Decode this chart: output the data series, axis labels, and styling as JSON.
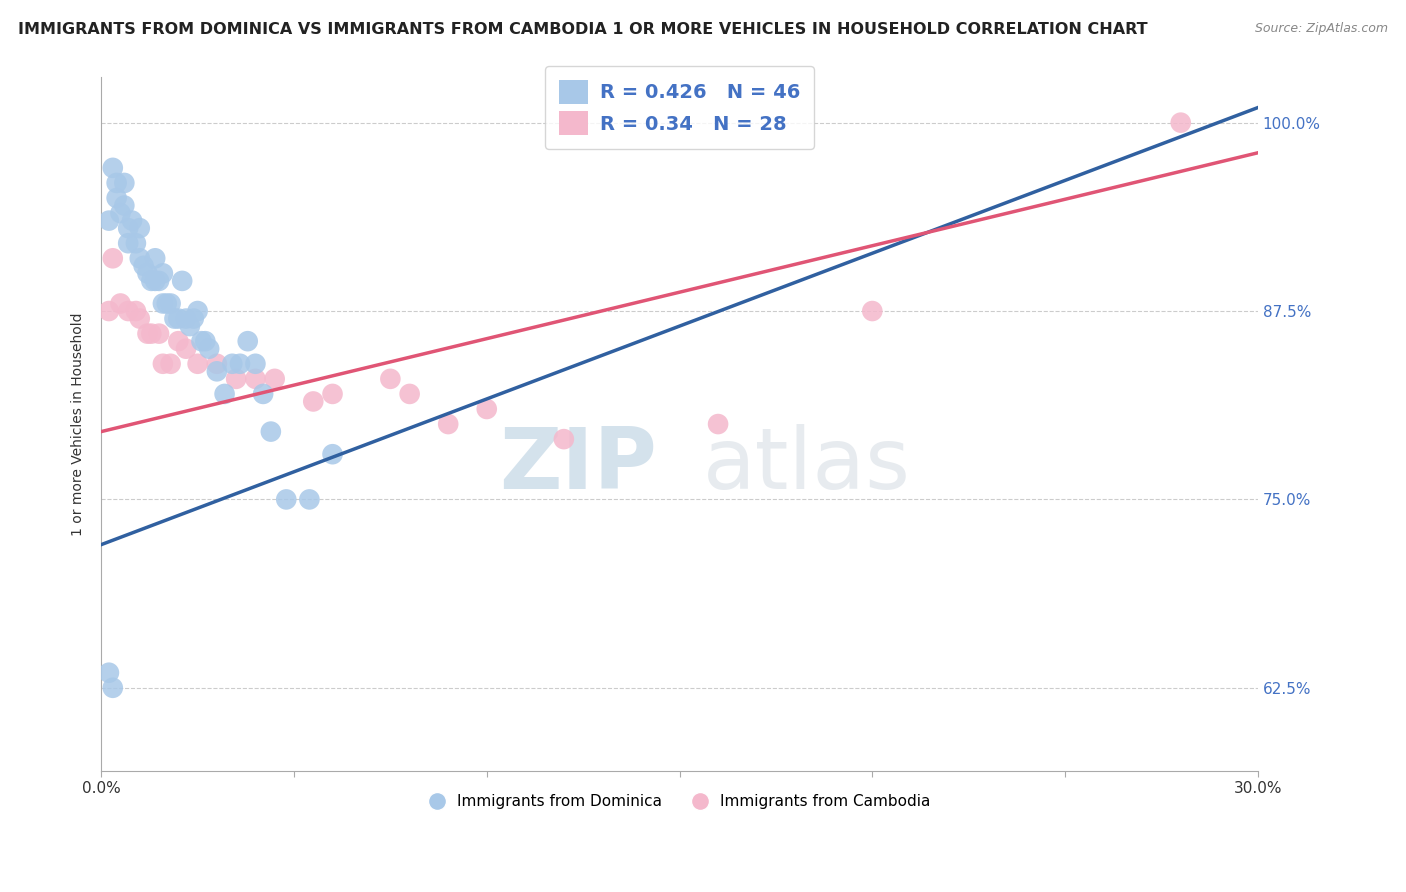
{
  "title": "IMMIGRANTS FROM DOMINICA VS IMMIGRANTS FROM CAMBODIA 1 OR MORE VEHICLES IN HOUSEHOLD CORRELATION CHART",
  "source": "Source: ZipAtlas.com",
  "ylabel": "1 or more Vehicles in Household",
  "xlim": [
    0.0,
    0.3
  ],
  "ylim": [
    0.57,
    1.03
  ],
  "xticks": [
    0.0,
    0.05,
    0.1,
    0.15,
    0.2,
    0.25,
    0.3
  ],
  "xticklabels": [
    "0.0%",
    "",
    "",
    "",
    "",
    "",
    "30.0%"
  ],
  "ytick_positions": [
    0.625,
    0.75,
    0.875,
    1.0
  ],
  "yticklabels": [
    "62.5%",
    "75.0%",
    "87.5%",
    "100.0%"
  ],
  "blue_R": 0.426,
  "blue_N": 46,
  "pink_R": 0.34,
  "pink_N": 28,
  "blue_color": "#a8c8e8",
  "pink_color": "#f4b8cc",
  "blue_line_color": "#3060a0",
  "pink_line_color": "#e05575",
  "legend_color": "#4472c4",
  "blue_x": [
    0.002,
    0.003,
    0.004,
    0.004,
    0.005,
    0.006,
    0.006,
    0.007,
    0.007,
    0.008,
    0.009,
    0.01,
    0.01,
    0.011,
    0.012,
    0.013,
    0.014,
    0.014,
    0.015,
    0.016,
    0.016,
    0.017,
    0.018,
    0.019,
    0.02,
    0.021,
    0.022,
    0.023,
    0.024,
    0.025,
    0.026,
    0.027,
    0.028,
    0.03,
    0.032,
    0.034,
    0.036,
    0.038,
    0.04,
    0.042,
    0.044,
    0.048,
    0.054,
    0.002,
    0.003,
    0.06
  ],
  "blue_y": [
    0.935,
    0.97,
    0.96,
    0.95,
    0.94,
    0.96,
    0.945,
    0.93,
    0.92,
    0.935,
    0.92,
    0.93,
    0.91,
    0.905,
    0.9,
    0.895,
    0.91,
    0.895,
    0.895,
    0.9,
    0.88,
    0.88,
    0.88,
    0.87,
    0.87,
    0.895,
    0.87,
    0.865,
    0.87,
    0.875,
    0.855,
    0.855,
    0.85,
    0.835,
    0.82,
    0.84,
    0.84,
    0.855,
    0.84,
    0.82,
    0.795,
    0.75,
    0.75,
    0.635,
    0.625,
    0.78
  ],
  "pink_x": [
    0.002,
    0.003,
    0.005,
    0.007,
    0.009,
    0.01,
    0.012,
    0.013,
    0.015,
    0.016,
    0.018,
    0.02,
    0.022,
    0.025,
    0.03,
    0.035,
    0.04,
    0.045,
    0.055,
    0.06,
    0.075,
    0.08,
    0.09,
    0.1,
    0.12,
    0.16,
    0.2,
    0.28
  ],
  "pink_y": [
    0.875,
    0.91,
    0.88,
    0.875,
    0.875,
    0.87,
    0.86,
    0.86,
    0.86,
    0.84,
    0.84,
    0.855,
    0.85,
    0.84,
    0.84,
    0.83,
    0.83,
    0.83,
    0.815,
    0.82,
    0.83,
    0.82,
    0.8,
    0.81,
    0.79,
    0.8,
    0.875,
    1.0
  ],
  "blue_line_y0": 0.72,
  "blue_line_y1": 1.01,
  "pink_line_y0": 0.795,
  "pink_line_y1": 0.98,
  "watermark_zip": "ZIP",
  "watermark_atlas": "atlas",
  "legend_label_blue": "Immigrants from Dominica",
  "legend_label_pink": "Immigrants from Cambodia",
  "grid_color": "#cccccc",
  "background_color": "#ffffff",
  "title_fontsize": 11.5,
  "axis_label_fontsize": 10,
  "tick_fontsize": 11
}
